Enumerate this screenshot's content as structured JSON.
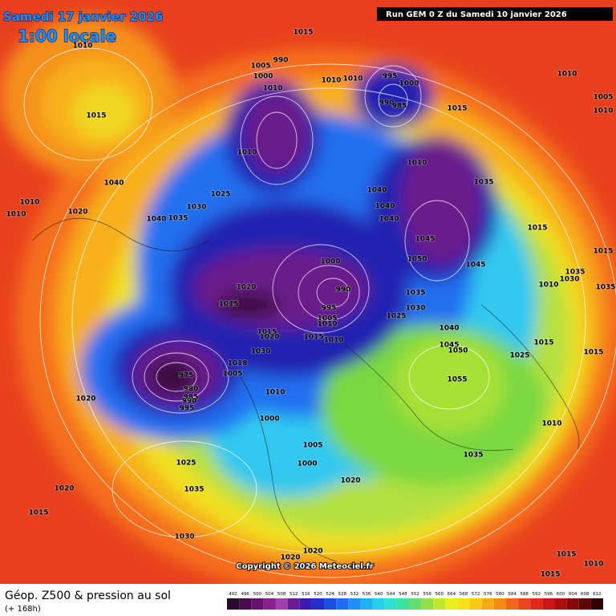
{
  "header": {
    "date": "Samedi 17 janvier 2026",
    "time": "1:00 locale",
    "run": "Run GEM 0 Z du Samedi 10 janvier 2026"
  },
  "map": {
    "pressure_labels": [
      "1015",
      "1010",
      "1015",
      "1010",
      "1010",
      "1020",
      "1040",
      "1040",
      "1035",
      "1030",
      "1025",
      "1005",
      "1000",
      "1010",
      "990",
      "1010",
      "1010",
      "1010",
      "995",
      "1000",
      "990",
      "985",
      "1015",
      "1010",
      "1005",
      "1010",
      "1010",
      "1035",
      "1040",
      "1040",
      "1040",
      "1045",
      "1050",
      "1045",
      "1015",
      "1015",
      "1035",
      "1010",
      "1030",
      "1035",
      "1000",
      "990",
      "1020",
      "1015",
      "995",
      "1005",
      "1010",
      "1035",
      "1030",
      "1025",
      "1040",
      "1045",
      "1050",
      "1025",
      "1015",
      "1015",
      "1015",
      "1010",
      "1015",
      "1020",
      "1030",
      "1018",
      "1005",
      "1055",
      "975",
      "980",
      "985",
      "990",
      "995",
      "1010",
      "1000",
      "1020",
      "1010",
      "1005",
      "1000",
      "1035",
      "1025",
      "1020",
      "1020",
      "1035",
      "1015",
      "1030",
      "1020",
      "1020",
      "1015",
      "1010",
      "1015"
    ],
    "copyright": "Copyright © 2026 Meteociel.fr"
  },
  "footer": {
    "title": "Géop. Z500 & pression au sol",
    "lead": "(+ 168h)"
  },
  "legend": {
    "values": [
      492,
      496,
      500,
      504,
      508,
      512,
      516,
      520,
      524,
      528,
      532,
      536,
      540,
      544,
      548,
      552,
      556,
      560,
      564,
      568,
      572,
      576,
      580,
      584,
      588,
      592,
      596,
      600,
      604,
      608,
      612
    ],
    "colors": [
      "#2a0a2e",
      "#4a0a4e",
      "#6a1270",
      "#8a2090",
      "#a040b0",
      "#6a1a9a",
      "#3a1ab0",
      "#2030c8",
      "#1a50e0",
      "#1a70f0",
      "#1a90f8",
      "#20b0f8",
      "#28d0f0",
      "#30e0d0",
      "#40e0a0",
      "#60e070",
      "#90e048",
      "#c0e830",
      "#e8f020",
      "#f8e018",
      "#f8c818",
      "#f8a818",
      "#f88818",
      "#f06818",
      "#e84818",
      "#e02818",
      "#c81818",
      "#a81010",
      "#880808",
      "#600404",
      "#300000"
    ]
  }
}
